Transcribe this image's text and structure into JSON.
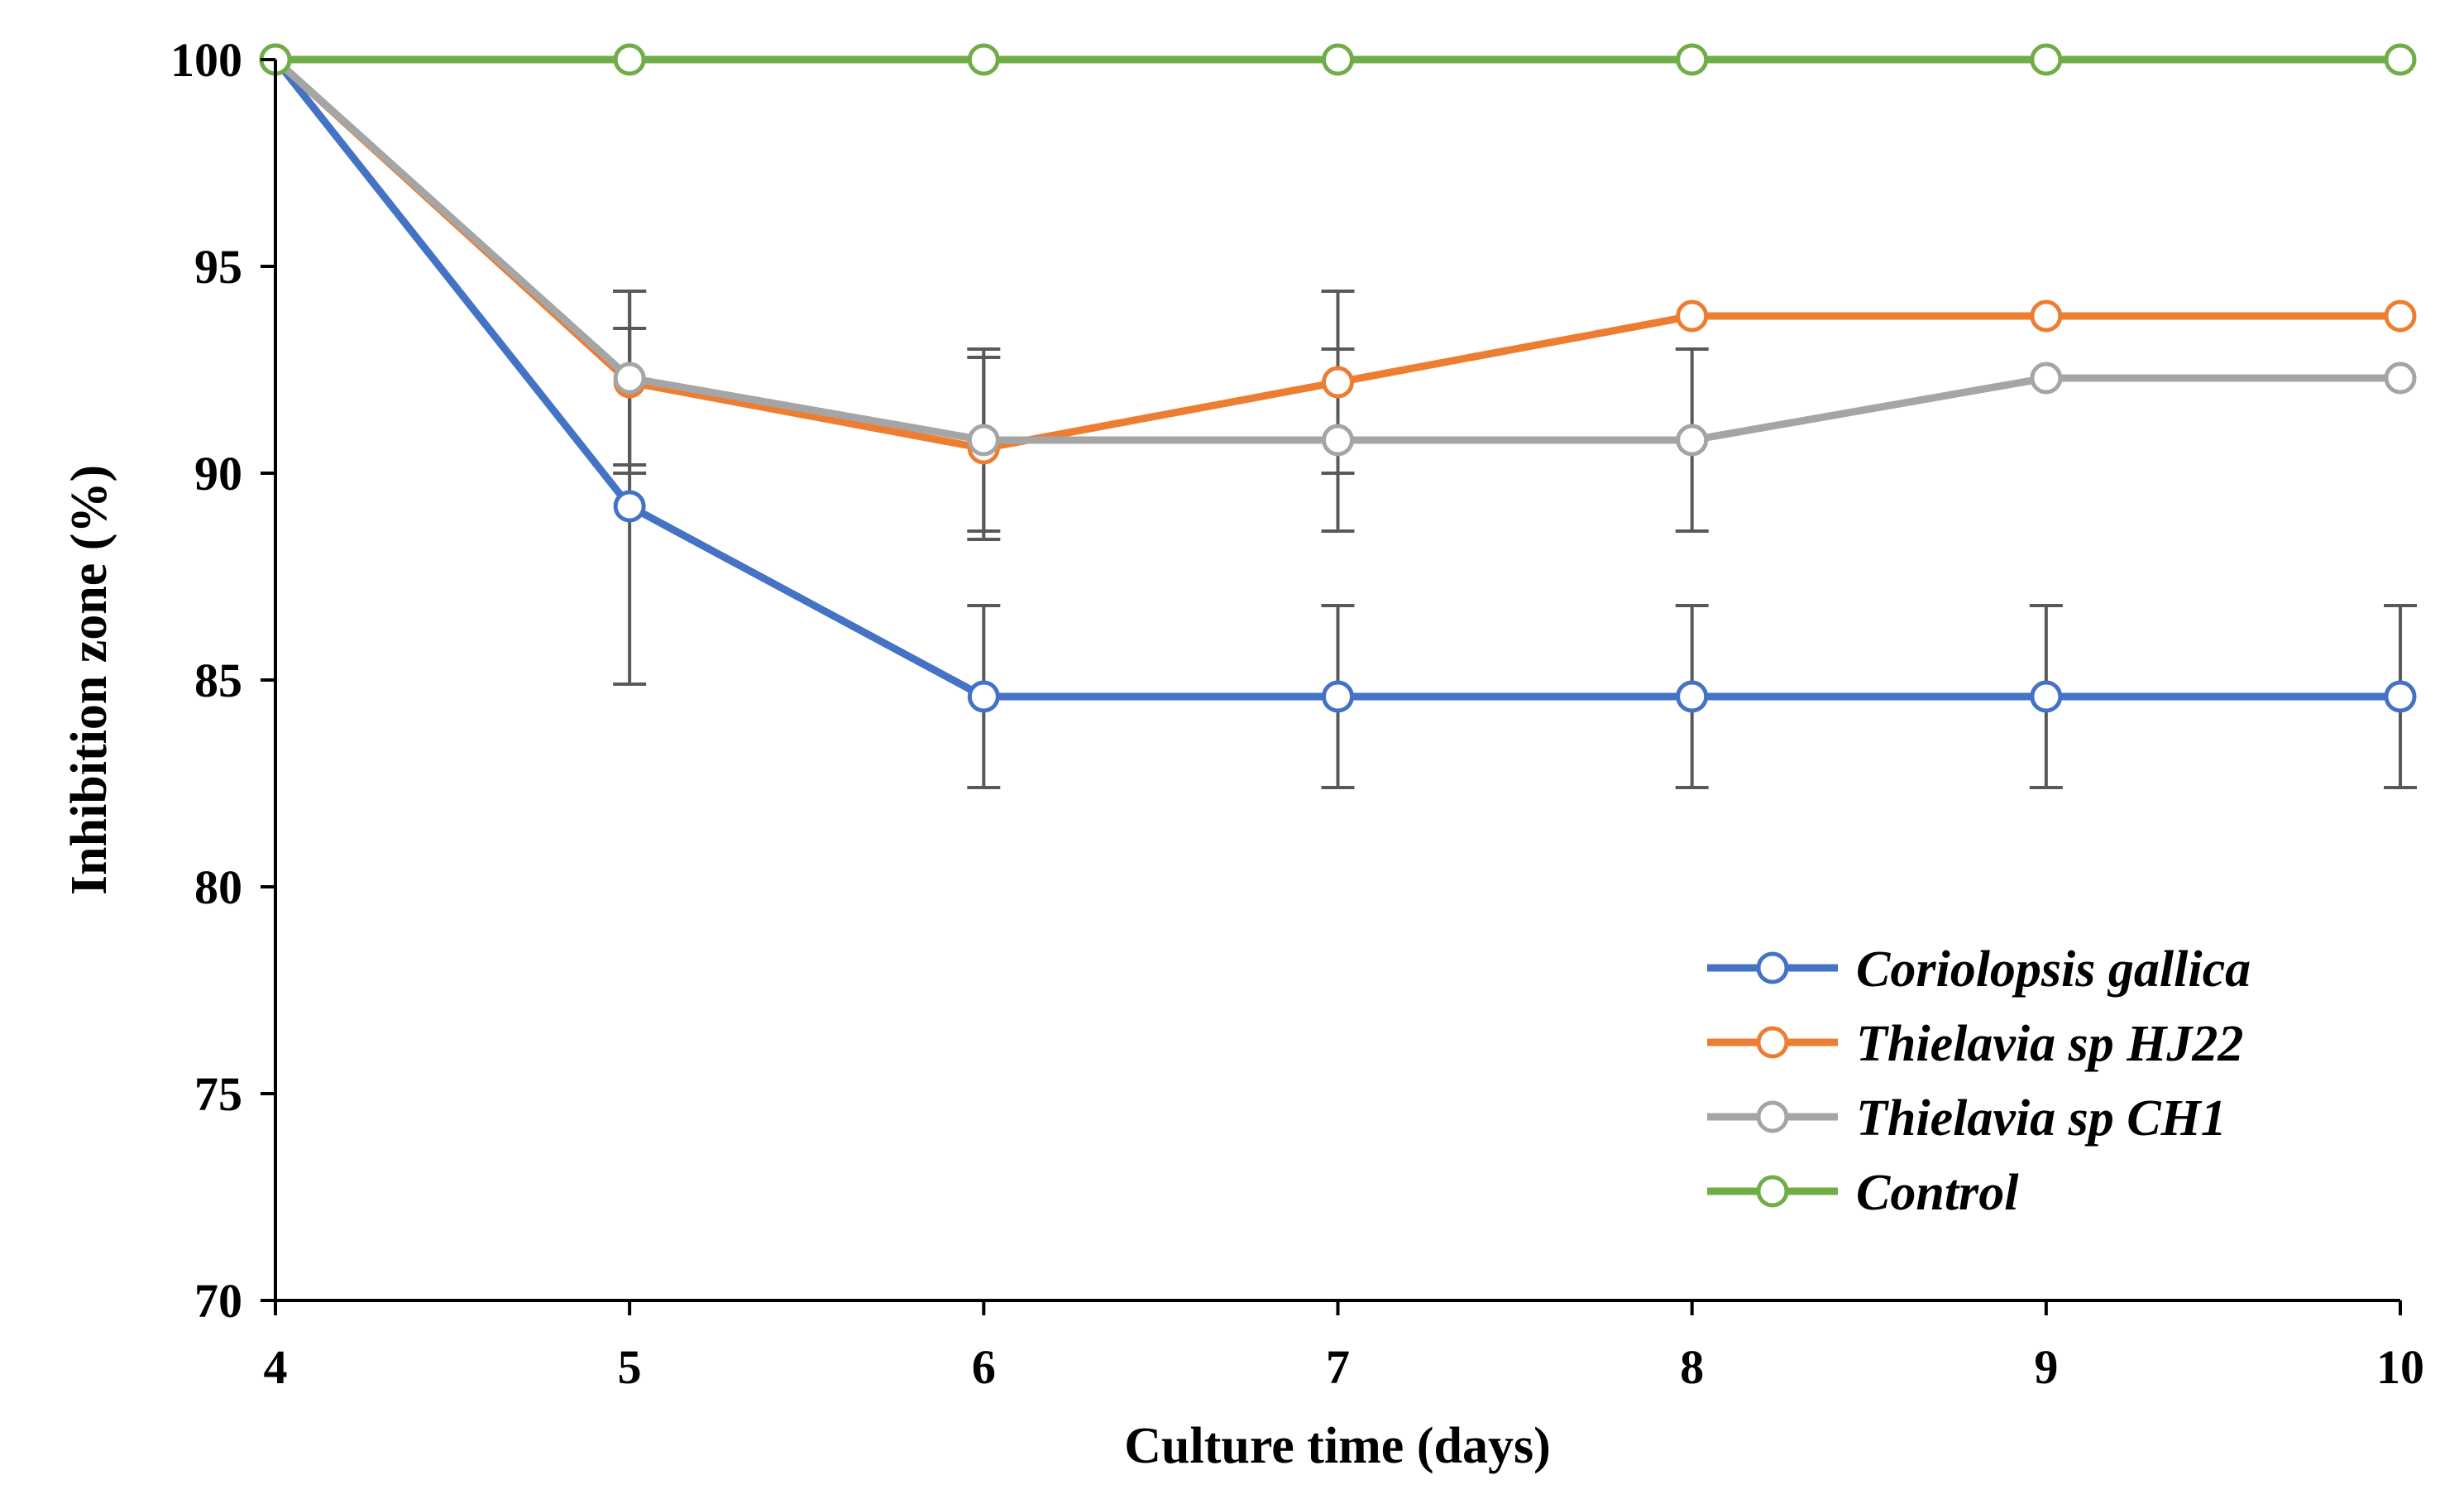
{
  "chart_data": {
    "type": "line",
    "title": "",
    "xlabel": "Culture time (days)",
    "ylabel": "Inhibition zone (%)",
    "xlim": [
      4,
      10
    ],
    "ylim": [
      70,
      100
    ],
    "x": [
      4,
      5,
      6,
      7,
      8,
      9,
      10
    ],
    "x_ticks": [
      "4",
      "5",
      "6",
      "7",
      "8",
      "9",
      "10"
    ],
    "y_ticks": [
      "70",
      "75",
      "80",
      "85",
      "90",
      "95",
      "100"
    ],
    "y_tick_values": [
      70,
      75,
      80,
      85,
      90,
      95,
      100
    ],
    "grid": false,
    "legend_position": "bottom-right",
    "marker": "open-circle",
    "series": [
      {
        "name": "Coriolopsis gallica",
        "color": "#4472C4",
        "values": [
          100,
          89.2,
          84.6,
          84.6,
          84.6,
          84.6,
          84.6
        ],
        "error": [
          0,
          4.3,
          2.2,
          2.2,
          2.2,
          2.2,
          2.2
        ]
      },
      {
        "name": "Thielavia sp HJ22",
        "color": "#ED7D31",
        "values": [
          100,
          92.2,
          90.6,
          92.2,
          93.8,
          93.8,
          93.8
        ],
        "error": [
          0,
          2.2,
          2.2,
          2.2,
          0,
          0,
          0
        ]
      },
      {
        "name": "Thielavia sp CH1",
        "color": "#A5A5A5",
        "values": [
          100,
          92.3,
          90.8,
          90.8,
          90.8,
          92.3,
          92.3
        ],
        "error": [
          0,
          2.1,
          2.2,
          2.2,
          2.2,
          0,
          0
        ]
      },
      {
        "name": "Control",
        "color": "#70AD47",
        "values": [
          100,
          100,
          100,
          100,
          100,
          100,
          100
        ],
        "error": [
          0,
          0,
          0,
          0,
          0,
          0,
          0
        ]
      }
    ],
    "error_bar_color": "#595959"
  }
}
